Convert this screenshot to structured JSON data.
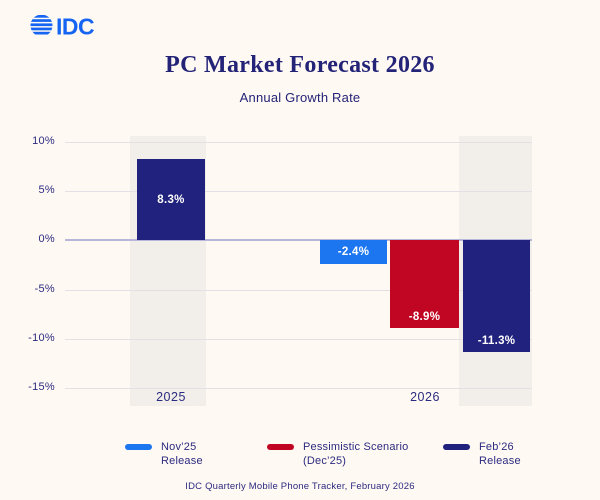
{
  "logo": {
    "text": "IDC"
  },
  "header": {
    "title": "PC Market Forecast 2026",
    "subtitle": "Annual Growth Rate"
  },
  "chart_data": {
    "type": "bar",
    "title": "PC Market Forecast 2026",
    "subtitle": "Annual Growth Rate",
    "ylabel": "",
    "ylim": [
      -15,
      10
    ],
    "yticks": [
      10,
      5,
      0,
      -5,
      -10,
      -15
    ],
    "ytick_labels": [
      "10%",
      "5%",
      "0%",
      "-5%",
      "-10%",
      "-15%"
    ],
    "categories": [
      "2025",
      "2026"
    ],
    "series": [
      {
        "name": "Nov’25 Release",
        "color": "#1C76F0",
        "values": [
          null,
          -2.4
        ]
      },
      {
        "name": "Pessimistic Scenario (Dec’25)",
        "color": "#C00622",
        "values": [
          null,
          -8.9
        ]
      },
      {
        "name": "Feb’26 Release",
        "color": "#21217E",
        "values": [
          8.3,
          -11.3
        ]
      }
    ],
    "bars": [
      {
        "category": "2025",
        "series": "Feb’26 Release",
        "value": 8.3,
        "label": "8.3%"
      },
      {
        "category": "2026",
        "series": "Nov’25 Release",
        "value": -2.4,
        "label": "-2.4%"
      },
      {
        "category": "2026",
        "series": "Pessimistic Scenario (Dec’25)",
        "value": -8.9,
        "label": "-8.9%"
      },
      {
        "category": "2026",
        "series": "Feb’26 Release",
        "value": -11.3,
        "label": "-11.3%"
      }
    ],
    "grid": true,
    "legend_position": "bottom",
    "highlighted_categories": [
      "2025",
      "Feb'26 Release 2026"
    ]
  },
  "legend": {
    "items": [
      {
        "lines": [
          "Nov’25",
          "Release"
        ],
        "color": "#1C76F0"
      },
      {
        "lines": [
          "Pessimistic Scenario",
          "(Dec’25)"
        ],
        "color": "#C00622"
      },
      {
        "lines": [
          "Feb’26",
          "Release"
        ],
        "color": "#21217E"
      }
    ]
  },
  "footer": {
    "source": "IDC Quarterly Mobile Phone Tracker, February 2026"
  },
  "colors": {
    "background": "#FFF9F3",
    "highlight_band": "#F2EEE9",
    "gridline": "#E3E0E5",
    "zero_line": "#B6B7D8",
    "text_navy": "#2B2B80",
    "title_navy": "#232377",
    "logo_blue": "#1565F2",
    "bar_label": "#FFFFFF"
  }
}
